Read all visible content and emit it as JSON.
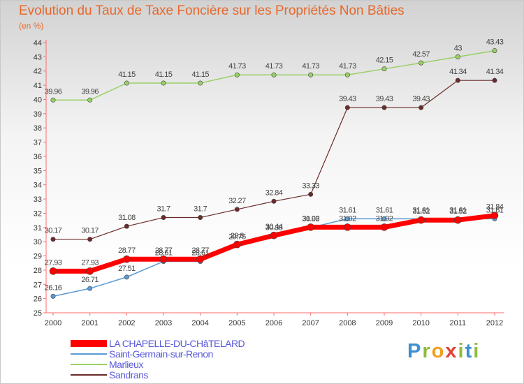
{
  "title": "Evolution du Taux de Taxe Foncière sur les Propriétés Non Bâties",
  "unit": "(en %)",
  "logo": "Proxiti",
  "chart_data": {
    "type": "line",
    "x": [
      "2000",
      "2001",
      "2002",
      "2003",
      "2004",
      "2005",
      "2006",
      "2007",
      "2008",
      "2009",
      "2010",
      "2011",
      "2012"
    ],
    "ylim": [
      25,
      44
    ],
    "yticks": [
      25,
      26,
      27,
      28,
      29,
      30,
      31,
      32,
      33,
      34,
      35,
      36,
      37,
      38,
      39,
      40,
      41,
      42,
      43,
      44
    ],
    "grid": false,
    "legend": "bottom-left",
    "series": [
      {
        "name": "Marlieux",
        "color": "#99d066",
        "values": [
          39.96,
          39.96,
          41.15,
          41.15,
          41.15,
          41.73,
          41.73,
          41.73,
          41.73,
          42.15,
          42.57,
          43,
          43.43
        ],
        "labels": [
          "39.96",
          "39.96",
          "41.15",
          "41.15",
          "41.15",
          "41.73",
          "41.73",
          "41.73",
          "41.73",
          "42.15",
          "42.57",
          "43",
          "43.43"
        ]
      },
      {
        "name": "Sandrans",
        "color": "#6b2a2a",
        "values": [
          30.17,
          30.17,
          31.08,
          31.7,
          31.7,
          32.27,
          32.84,
          33.33,
          39.43,
          39.43,
          39.43,
          41.34,
          41.34
        ],
        "labels": [
          "30.17",
          "30.17",
          "31.08",
          "31.7",
          "31.7",
          "32.27",
          "32.84",
          "33.33",
          "39.43",
          "39.43",
          "39.43",
          "41.34",
          "41.34"
        ]
      },
      {
        "name": "Saint-Germain-sur-Renon",
        "color": "#5b9bd5",
        "values": [
          26.16,
          26.71,
          27.51,
          28.61,
          28.61,
          29.75,
          30.38,
          30.99,
          31.61,
          31.61,
          31.61,
          31.61,
          31.61
        ],
        "labels": [
          "26.16",
          "26.71",
          "27.51",
          "28.61",
          "28.61",
          "29.75",
          "30.38",
          "30.99",
          "31.61",
          "31.61",
          "31.61",
          "31.61",
          "31.61"
        ]
      },
      {
        "name": "LA CHAPELLE-DU-CHâTELARD",
        "color": "#ff0000",
        "values": [
          27.93,
          27.93,
          28.77,
          28.77,
          28.77,
          29.8,
          30.44,
          31.02,
          31.02,
          31.02,
          31.52,
          31.52,
          31.84
        ],
        "labels": [
          "27.93",
          "27.93",
          "28.77",
          "28.77",
          "28.77",
          "29.8",
          "30.44",
          "31.02",
          "31.02",
          "31.02",
          "31.52",
          "31.52",
          "31.84"
        ]
      }
    ],
    "legend_order": [
      "LA CHAPELLE-DU-CHâTELARD",
      "Saint-Germain-sur-Renon",
      "Marlieux",
      "Sandrans"
    ]
  }
}
